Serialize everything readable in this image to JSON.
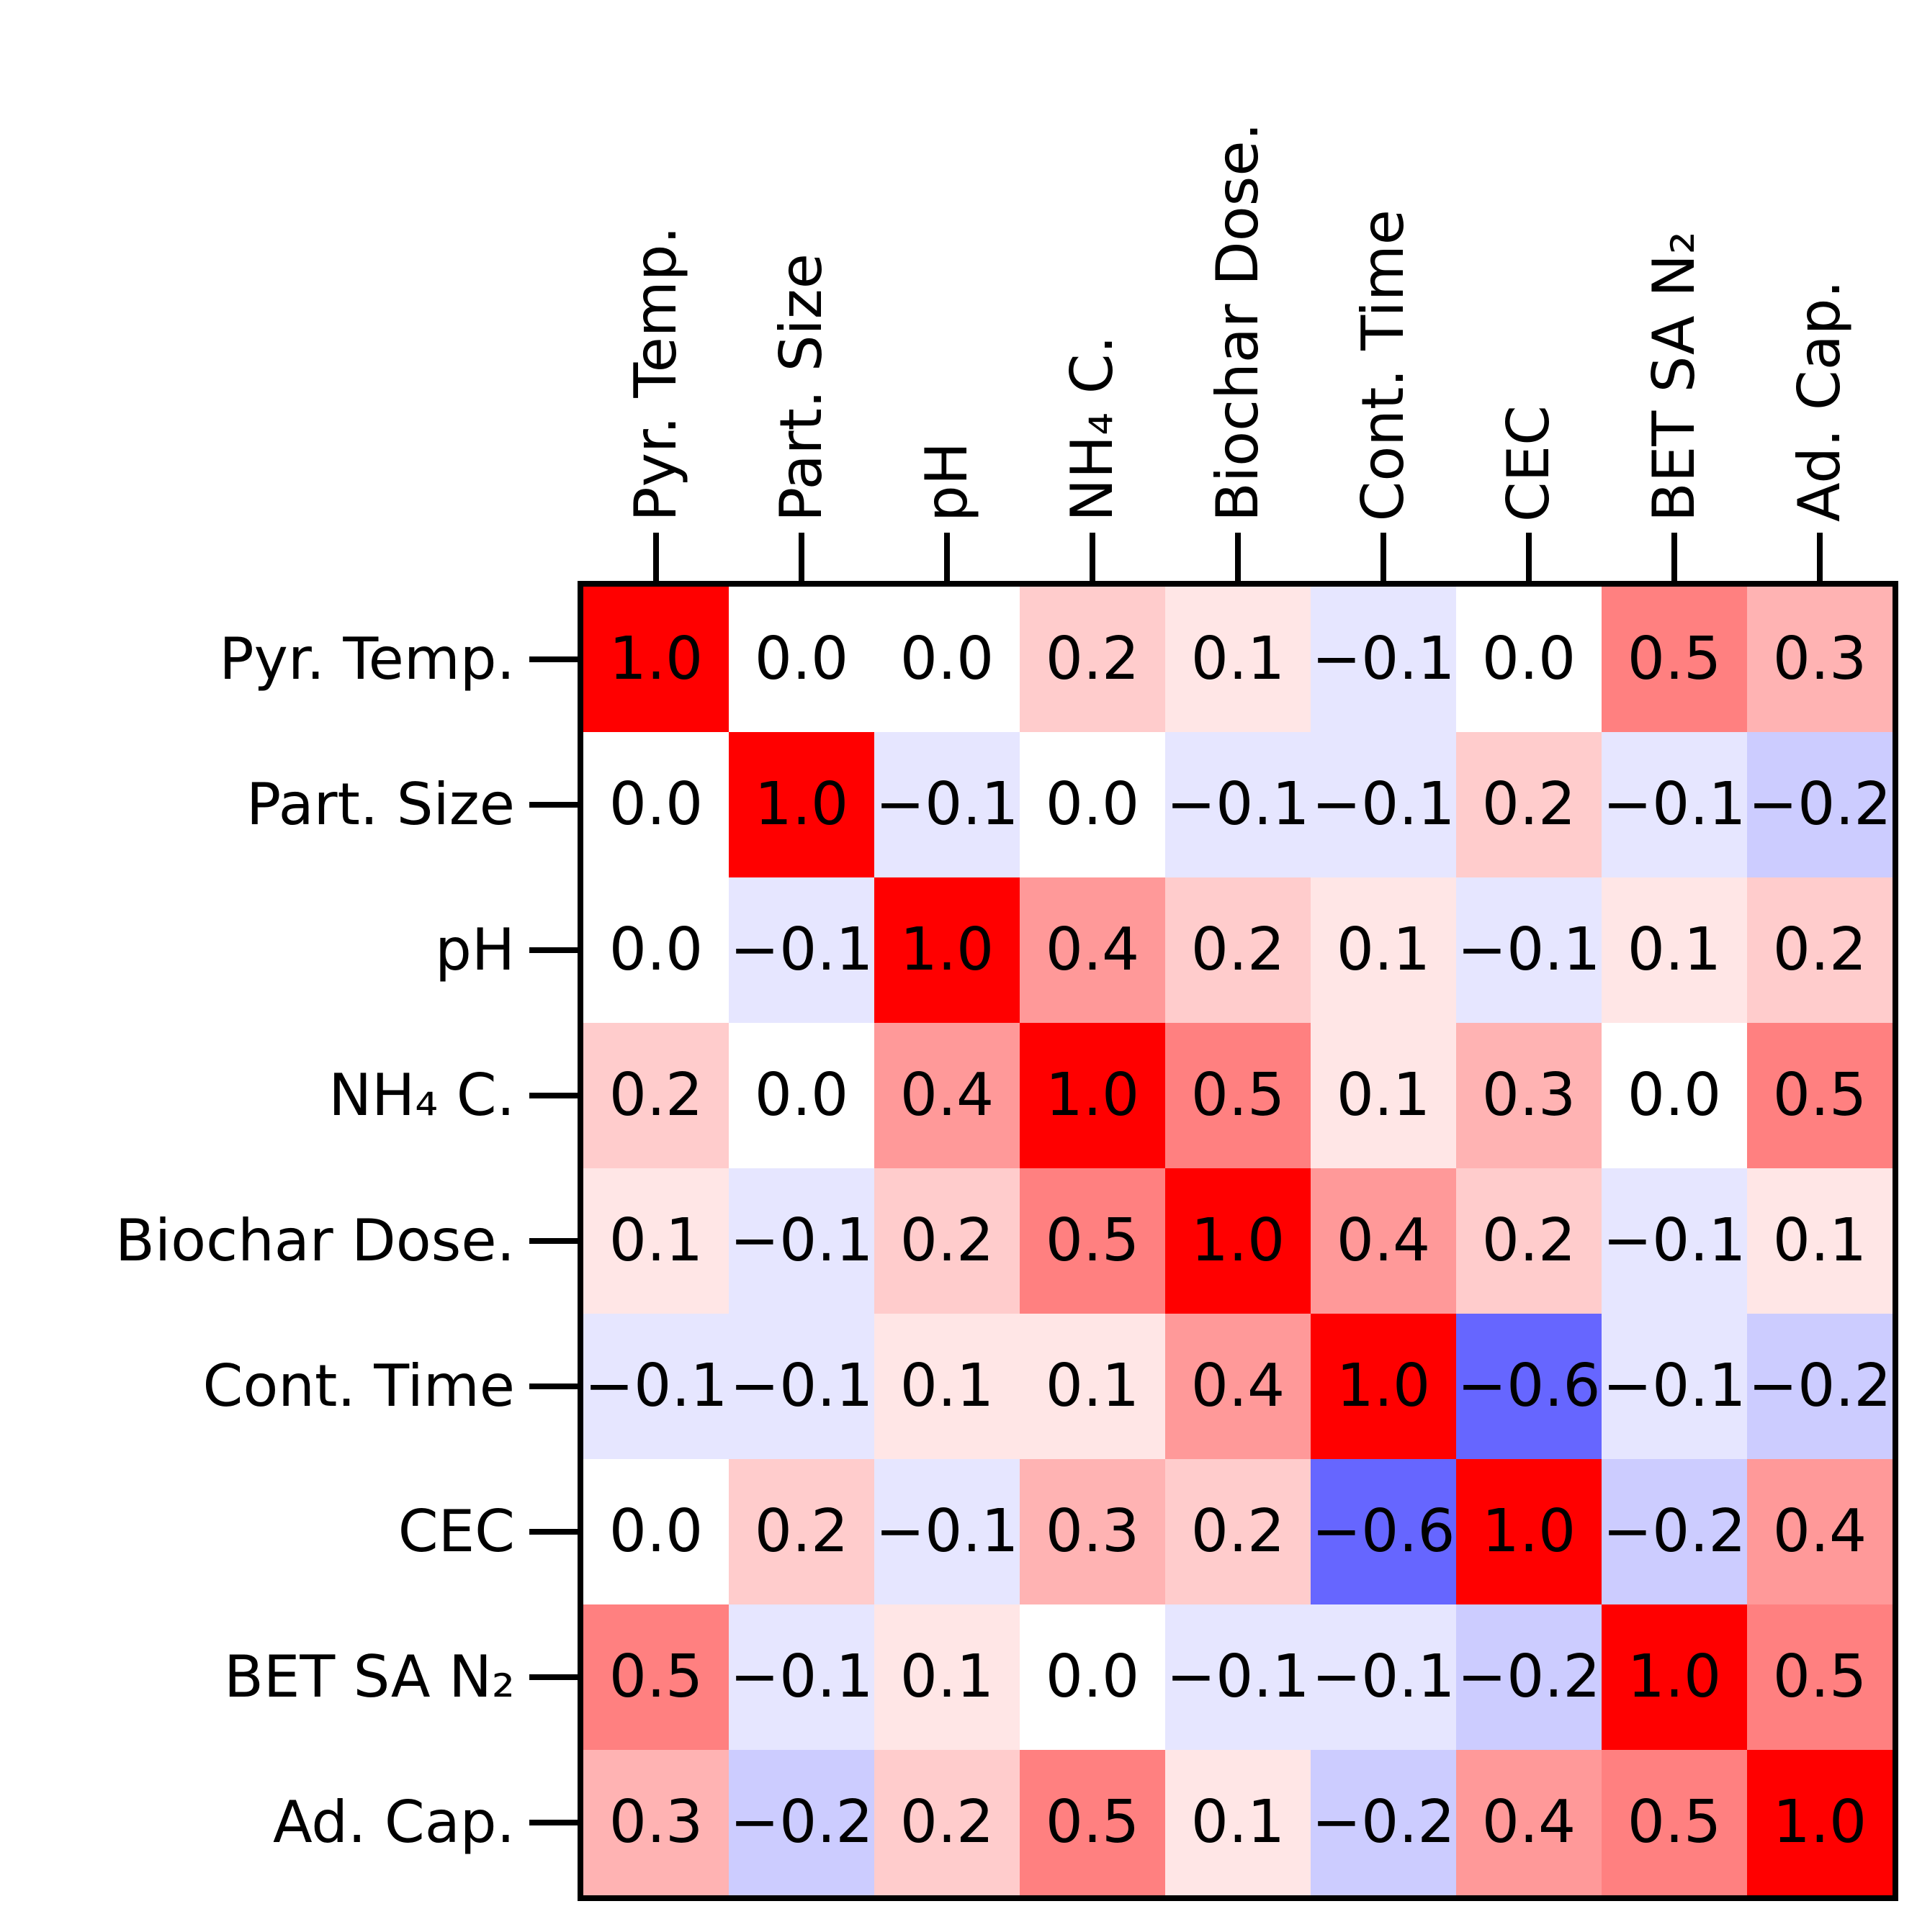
{
  "chart_data": {
    "type": "heatmap",
    "title": "",
    "labels": [
      "Pyr. Temp.",
      "Part. Size",
      "pH",
      "NH₄ C.",
      "Biochar Dose.",
      "Cont. Time",
      "CEC",
      "BET SA N₂",
      "Ad. Cap."
    ],
    "matrix": [
      [
        1.0,
        0.0,
        0.0,
        0.2,
        0.1,
        -0.1,
        0.0,
        0.5,
        0.3
      ],
      [
        0.0,
        1.0,
        -0.1,
        0.0,
        -0.1,
        -0.1,
        0.2,
        -0.1,
        -0.2
      ],
      [
        0.0,
        -0.1,
        1.0,
        0.4,
        0.2,
        0.1,
        -0.1,
        0.1,
        0.2
      ],
      [
        0.2,
        0.0,
        0.4,
        1.0,
        0.5,
        0.1,
        0.3,
        0.0,
        0.5
      ],
      [
        0.1,
        -0.1,
        0.2,
        0.5,
        1.0,
        0.4,
        0.2,
        -0.1,
        0.1
      ],
      [
        -0.1,
        -0.1,
        0.1,
        0.1,
        0.4,
        1.0,
        -0.6,
        -0.1,
        -0.2
      ],
      [
        0.0,
        0.2,
        -0.1,
        0.3,
        0.2,
        -0.6,
        1.0,
        -0.2,
        0.4
      ],
      [
        0.5,
        -0.1,
        0.1,
        0.0,
        -0.1,
        -0.1,
        -0.2,
        1.0,
        0.5
      ],
      [
        0.3,
        -0.2,
        0.2,
        0.5,
        0.1,
        -0.2,
        0.4,
        0.5,
        1.0
      ]
    ],
    "display": [
      [
        "1.0",
        "0.0",
        "0.0",
        "0.2",
        "0.1",
        "−0.1",
        "0.0",
        "0.5",
        "0.3"
      ],
      [
        "0.0",
        "1.0",
        "−0.1",
        "0.0",
        "−0.1",
        "−0.1",
        "0.2",
        "−0.1",
        "−0.2"
      ],
      [
        "0.0",
        "−0.1",
        "1.0",
        "0.4",
        "0.2",
        "0.1",
        "−0.1",
        "0.1",
        "0.2"
      ],
      [
        "0.2",
        "0.0",
        "0.4",
        "1.0",
        "0.5",
        "0.1",
        "0.3",
        "0.0",
        "0.5"
      ],
      [
        "0.1",
        "−0.1",
        "0.2",
        "0.5",
        "1.0",
        "0.4",
        "0.2",
        "−0.1",
        "0.1"
      ],
      [
        "−0.1",
        "−0.1",
        "0.1",
        "0.1",
        "0.4",
        "1.0",
        "−0.6",
        "−0.1",
        "−0.2"
      ],
      [
        "0.0",
        "0.2",
        "−0.1",
        "0.3",
        "0.2",
        "−0.6",
        "1.0",
        "−0.2",
        "0.4"
      ],
      [
        "0.5",
        "−0.1",
        "0.1",
        "0.0",
        "−0.1",
        "−0.1",
        "−0.2",
        "1.0",
        "0.5"
      ],
      [
        "0.3",
        "−0.2",
        "0.2",
        "0.5",
        "0.1",
        "−0.2",
        "0.4",
        "0.5",
        "1.0"
      ]
    ],
    "colormap": "bwr",
    "vmin": -1,
    "vmax": 1,
    "grid": false,
    "legend": "none",
    "colors": {
      "positive_max": "#ff0000",
      "zero": "#ffffff",
      "negative_max": "#0000ff",
      "frame": "#000000",
      "text": "#000000"
    }
  }
}
